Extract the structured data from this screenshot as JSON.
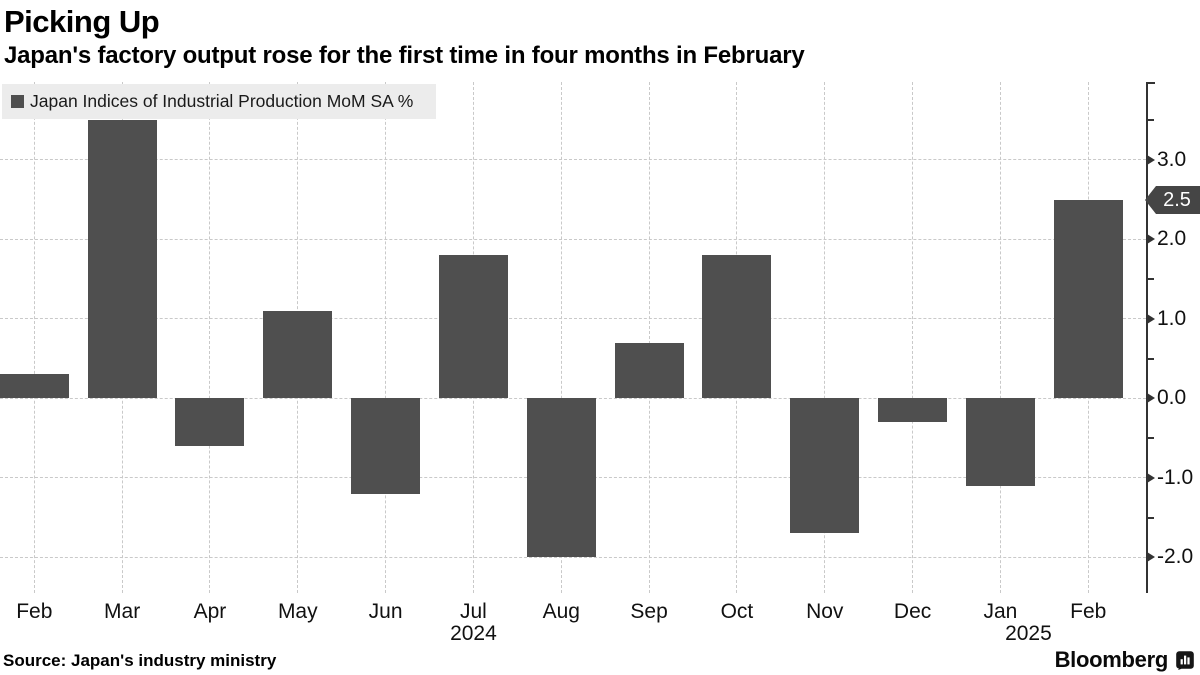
{
  "header": {
    "title": "Picking Up",
    "subtitle": "Japan's factory output rose for the first time in four months in February"
  },
  "legend": {
    "label": "Japan Indices of Industrial Production MoM SA %"
  },
  "chart_data": {
    "type": "bar",
    "title": "Picking Up",
    "subtitle": "Japan's factory output rose for the first time in four months in February",
    "series_name": "Japan Indices of Industrial Production MoM SA %",
    "categories": [
      "Feb",
      "Mar",
      "Apr",
      "May",
      "Jun",
      "Jul",
      "Aug",
      "Sep",
      "Oct",
      "Nov",
      "Dec",
      "Jan",
      "Feb"
    ],
    "year_labels": [
      {
        "month_index": 5,
        "label": "2024"
      },
      {
        "month_index": 11,
        "label": "2025"
      }
    ],
    "values": [
      0.3,
      3.5,
      -0.6,
      1.1,
      -1.2,
      1.8,
      -2.0,
      0.7,
      1.8,
      -1.7,
      -0.3,
      -1.1,
      2.5
    ],
    "ylim": [
      -2.45,
      3.98
    ],
    "y_major_tick_labels": [
      "3.0",
      "2.0",
      "1.0",
      "0.0",
      "-1.0",
      "-2.0"
    ],
    "y_minor_ticks": [
      3.5,
      2.5,
      1.5,
      0.5,
      -0.5,
      -1.5
    ],
    "last_value_badge": "2.5",
    "bar_color": "#4f4f4f",
    "grid": true,
    "legend_position": "top-left",
    "y_axis_side": "right"
  },
  "footer": {
    "source": "Source: Japan's industry ministry",
    "brand": "Bloomberg"
  }
}
